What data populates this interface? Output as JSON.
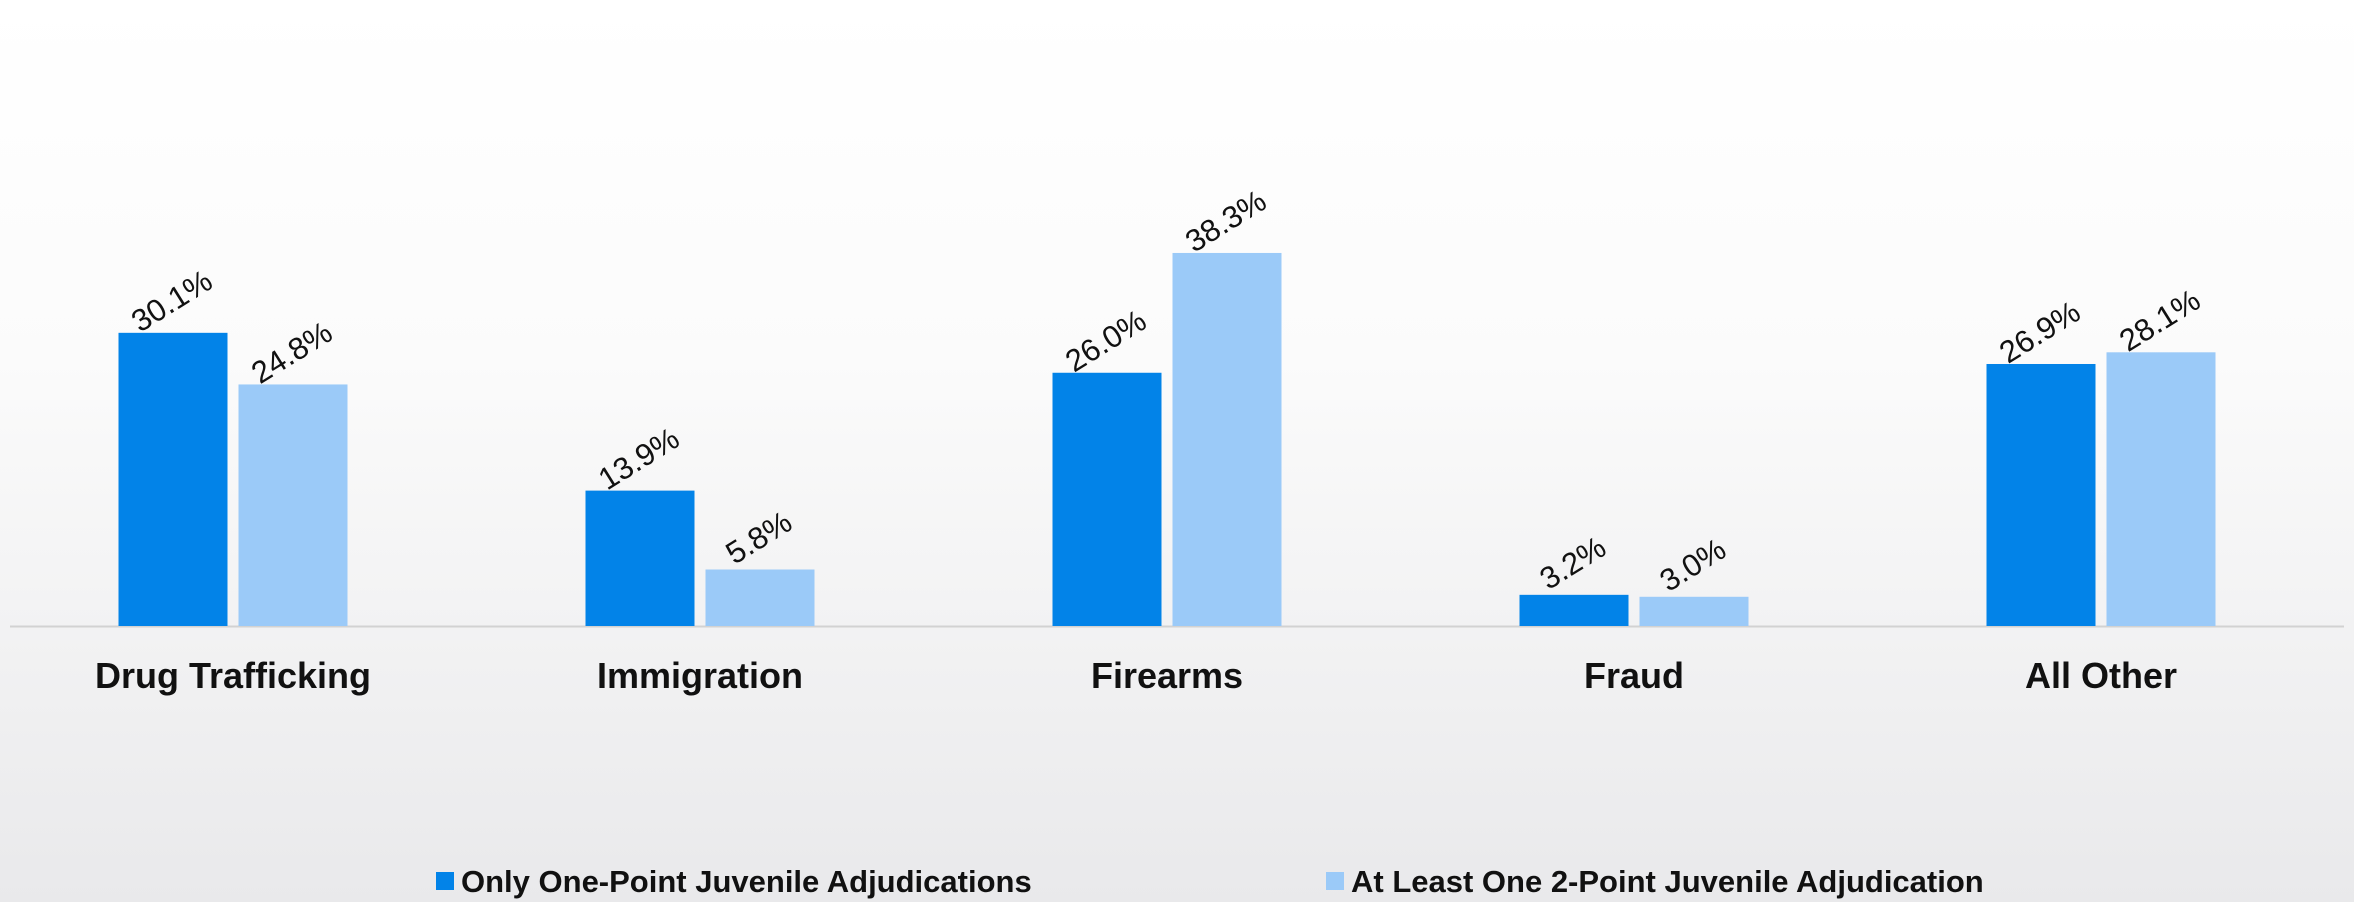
{
  "chart_data": {
    "type": "bar",
    "title": "",
    "xlabel": "",
    "ylabel": "",
    "categories": [
      "Drug Trafficking",
      "Immigration",
      "Firearms",
      "Fraud",
      "All Other"
    ],
    "series": [
      {
        "name": "Only One-Point Juvenile Adjudications",
        "values": [
          30.1,
          13.9,
          26.0,
          3.2,
          26.9
        ],
        "labels": [
          "30.1%",
          "13.9%",
          "26.0%",
          "3.2%",
          "26.9%"
        ],
        "color": "#0283e8"
      },
      {
        "name": "At Least One 2-Point Juvenile Adjudication",
        "values": [
          24.8,
          5.8,
          38.3,
          3.0,
          28.1
        ],
        "labels": [
          "24.8%",
          "5.8%",
          "38.3%",
          "3.0%",
          "28.1%"
        ],
        "color": "#9bcaf8"
      }
    ],
    "ylim": [
      0,
      45
    ],
    "grid": false,
    "legend_position": "bottom",
    "data_label_rotation": "diagonal"
  }
}
